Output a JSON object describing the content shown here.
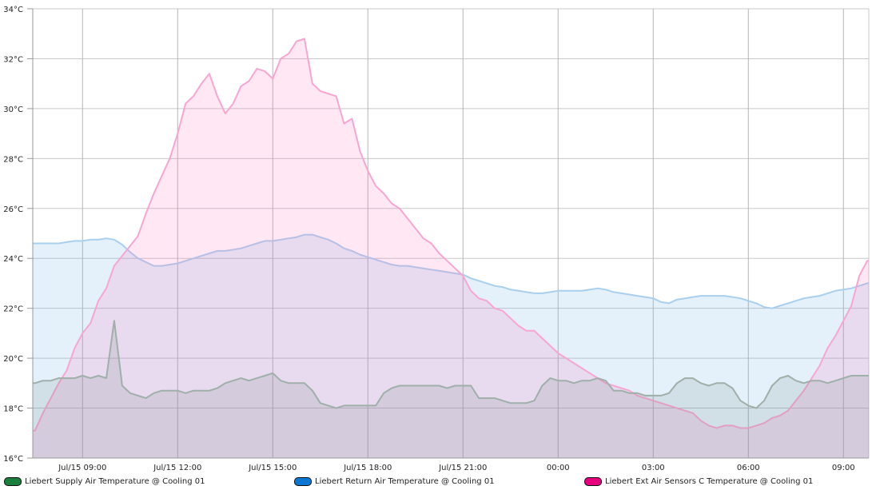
{
  "chart_data": {
    "type": "area",
    "title": "",
    "xlabel": "",
    "ylabel": "",
    "y_unit": "°C",
    "ylim": [
      16,
      34
    ],
    "yticks": [
      16,
      18,
      20,
      22,
      24,
      26,
      28,
      30,
      32,
      34
    ],
    "ytick_labels": [
      "16°C",
      "18°C",
      "20°C",
      "22°C",
      "24°C",
      "26°C",
      "28°C",
      "30°C",
      "32°C",
      "34°C"
    ],
    "x_unit": "hours since Jul/15 00:00",
    "xlim": [
      7.43,
      33.8
    ],
    "xticks": [
      9,
      12,
      15,
      18,
      21,
      24,
      27,
      30,
      33
    ],
    "xtick_labels": [
      "Jul/15 09:00",
      "Jul/15 12:00",
      "Jul/15 15:00",
      "Jul/15 18:00",
      "Jul/15 21:00",
      "00:00",
      "03:00",
      "06:00",
      "09:00"
    ],
    "grid": true,
    "legend_position": "bottom",
    "x_start": 7.5,
    "x_step": 0.25,
    "series": [
      {
        "name": "Liebert Return Air Temperature @ Cooling 01",
        "legend_color": "#0a78d2",
        "line_color": "#a9cfee",
        "fill_color": "rgba(110,175,230,0.19)",
        "values": [
          24.6,
          24.6,
          24.6,
          24.6,
          24.65,
          24.7,
          24.7,
          24.75,
          24.75,
          24.8,
          24.75,
          24.55,
          24.25,
          24.0,
          23.85,
          23.7,
          23.7,
          23.75,
          23.8,
          23.9,
          24.0,
          24.1,
          24.2,
          24.3,
          24.3,
          24.35,
          24.4,
          24.5,
          24.6,
          24.7,
          24.7,
          24.75,
          24.8,
          24.85,
          24.95,
          24.95,
          24.85,
          24.75,
          24.6,
          24.4,
          24.3,
          24.15,
          24.05,
          23.95,
          23.85,
          23.75,
          23.7,
          23.7,
          23.65,
          23.6,
          23.55,
          23.5,
          23.45,
          23.4,
          23.35,
          23.2,
          23.1,
          23.0,
          22.9,
          22.85,
          22.75,
          22.7,
          22.65,
          22.6,
          22.6,
          22.65,
          22.7,
          22.7,
          22.7,
          22.7,
          22.75,
          22.8,
          22.75,
          22.65,
          22.6,
          22.55,
          22.5,
          22.45,
          22.4,
          22.25,
          22.2,
          22.35,
          22.4,
          22.45,
          22.5,
          22.5,
          22.5,
          22.5,
          22.45,
          22.4,
          22.3,
          22.2,
          22.05,
          22.0,
          22.1,
          22.2,
          22.3,
          22.4,
          22.45,
          22.5,
          22.6,
          22.7,
          22.75,
          22.8,
          22.9,
          23.0
        ]
      },
      {
        "name": "Liebert Ext Air Sensors C Temperature @ Cooling 01",
        "legend_color": "#e6007e",
        "line_color": "#f7a6d2",
        "fill_color": "rgba(255,110,185,0.17)",
        "values": [
          17.1,
          17.8,
          18.4,
          19.0,
          19.5,
          20.4,
          21.0,
          21.4,
          22.3,
          22.8,
          23.7,
          24.1,
          24.5,
          24.9,
          25.8,
          26.6,
          27.3,
          28.0,
          29.0,
          30.2,
          30.5,
          31.0,
          31.4,
          30.5,
          29.8,
          30.2,
          30.9,
          31.1,
          31.6,
          31.5,
          31.2,
          32.0,
          32.2,
          32.7,
          32.8,
          31.0,
          30.7,
          30.6,
          30.5,
          29.4,
          29.6,
          28.3,
          27.5,
          26.9,
          26.6,
          26.2,
          26.0,
          25.6,
          25.2,
          24.8,
          24.6,
          24.2,
          23.9,
          23.6,
          23.3,
          22.7,
          22.4,
          22.3,
          22.0,
          21.9,
          21.6,
          21.3,
          21.1,
          21.1,
          20.8,
          20.5,
          20.2,
          20.0,
          19.8,
          19.6,
          19.4,
          19.2,
          19.0,
          18.9,
          18.8,
          18.7,
          18.5,
          18.4,
          18.3,
          18.2,
          18.1,
          18.0,
          17.9,
          17.8,
          17.5,
          17.3,
          17.2,
          17.3,
          17.3,
          17.2,
          17.2,
          17.3,
          17.4,
          17.6,
          17.7,
          17.9,
          18.3,
          18.7,
          19.2,
          19.7,
          20.4,
          20.9,
          21.5,
          22.1,
          23.3,
          23.9
        ]
      },
      {
        "name": "Liebert Supply Air Temperature @ Cooling 01",
        "legend_color": "#1a7f3c",
        "line_color": "#9fafa9",
        "fill_color": "rgba(70,110,90,0.12)",
        "values": [
          19.0,
          19.1,
          19.1,
          19.2,
          19.2,
          19.2,
          19.3,
          19.2,
          19.3,
          19.2,
          21.5,
          18.9,
          18.6,
          18.5,
          18.4,
          18.6,
          18.7,
          18.7,
          18.7,
          18.6,
          18.7,
          18.7,
          18.7,
          18.8,
          19.0,
          19.1,
          19.2,
          19.1,
          19.2,
          19.3,
          19.4,
          19.1,
          19.0,
          19.0,
          19.0,
          18.7,
          18.2,
          18.1,
          18.0,
          18.1,
          18.1,
          18.1,
          18.1,
          18.1,
          18.6,
          18.8,
          18.9,
          18.9,
          18.9,
          18.9,
          18.9,
          18.9,
          18.8,
          18.9,
          18.9,
          18.9,
          18.4,
          18.4,
          18.4,
          18.3,
          18.2,
          18.2,
          18.2,
          18.3,
          18.9,
          19.2,
          19.1,
          19.1,
          19.0,
          19.1,
          19.1,
          19.2,
          19.1,
          18.7,
          18.7,
          18.6,
          18.6,
          18.5,
          18.5,
          18.5,
          18.6,
          19.0,
          19.2,
          19.2,
          19.0,
          18.9,
          19.0,
          19.0,
          18.8,
          18.3,
          18.1,
          18.0,
          18.3,
          18.9,
          19.2,
          19.3,
          19.1,
          19.0,
          19.1,
          19.1,
          19.0,
          19.1,
          19.2,
          19.3,
          19.3,
          19.3
        ]
      }
    ]
  },
  "legend": [
    {
      "label": "Liebert Supply Air Temperature @ Cooling 01",
      "color": "#1a7f3c"
    },
    {
      "label": "Liebert Return Air Temperature @ Cooling 01",
      "color": "#0a78d2"
    },
    {
      "label": "Liebert Ext Air Sensors C Temperature @ Cooling 01",
      "color": "#e6007e"
    }
  ]
}
